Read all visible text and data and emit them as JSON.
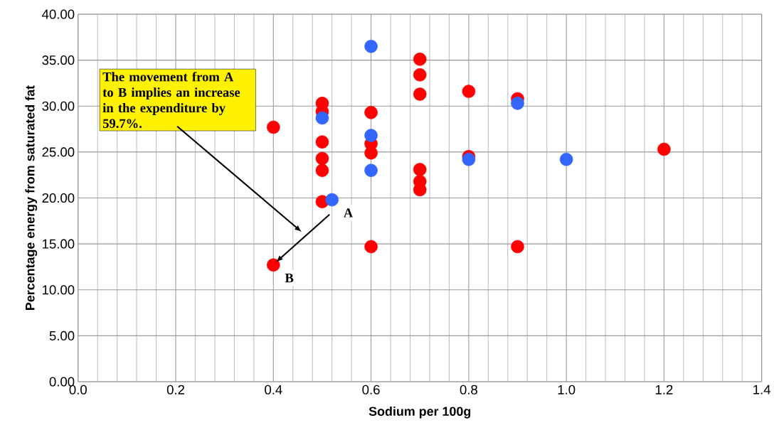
{
  "chart_data": {
    "type": "scatter",
    "xlabel": "Sodium per 100g",
    "ylabel": "Percentage energy from saturated fat",
    "xlim": [
      0,
      1.4
    ],
    "xticks": [
      {
        "value": 0,
        "label": "0.0"
      },
      {
        "value": 0.2,
        "label": "0.2"
      },
      {
        "value": 0.4,
        "label": "0.4"
      },
      {
        "value": 0.6,
        "label": "0.6"
      },
      {
        "value": 0.8,
        "label": "0.8"
      },
      {
        "value": 1.0,
        "label": "1.0"
      },
      {
        "value": 1.2,
        "label": "1.2"
      },
      {
        "value": 1.4,
        "label": "1.4"
      }
    ],
    "ylim": [
      0,
      40
    ],
    "yticks": [
      {
        "value": 0,
        "label": "0.00"
      },
      {
        "value": 5,
        "label": "5.00"
      },
      {
        "value": 10,
        "label": "10.00"
      },
      {
        "value": 15,
        "label": "15.00"
      },
      {
        "value": 20,
        "label": "20.00"
      },
      {
        "value": 25,
        "label": "25.00"
      },
      {
        "value": 30,
        "label": "30.00"
      },
      {
        "value": 35,
        "label": "35.00"
      },
      {
        "value": 40,
        "label": "40.00"
      }
    ],
    "grid": true,
    "series": [
      {
        "color": "#ff0000",
        "x": [
          0.4,
          0.4,
          0.5,
          0.5,
          0.5,
          0.5,
          0.5,
          0.5,
          0.6,
          0.6,
          0.6,
          0.6,
          0.7,
          0.7,
          0.7,
          0.7,
          0.7,
          0.7,
          0.8,
          0.8,
          0.9,
          0.9,
          1.2
        ],
        "values": [
          27.7,
          12.7,
          30.3,
          29.4,
          26.1,
          24.3,
          23.0,
          19.6,
          29.3,
          25.9,
          24.9,
          14.7,
          35.1,
          33.4,
          31.3,
          23.1,
          21.8,
          20.9,
          31.6,
          24.5,
          30.8,
          14.7,
          25.3
        ]
      },
      {
        "color": "#3366ff",
        "x": [
          0.5,
          0.52,
          0.6,
          0.6,
          0.6,
          0.8,
          0.9,
          1.0
        ],
        "values": [
          28.7,
          19.8,
          36.5,
          26.8,
          23.0,
          24.2,
          30.3,
          24.2
        ]
      }
    ],
    "annotations": [
      "The movement from A to B implies an increase in the expenditure by 59.7%.",
      {
        "text": "A",
        "x": 0.52,
        "y": 19.8
      },
      {
        "text": "B",
        "x": 0.4,
        "y": 12.7
      }
    ]
  }
}
